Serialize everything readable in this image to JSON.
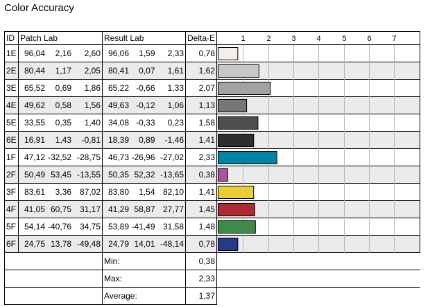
{
  "title": "Color Accuracy",
  "headers": {
    "id": "ID",
    "patch": "Patch Lab",
    "result": "Result Lab",
    "delta": "Delta-E"
  },
  "chart_data": {
    "type": "bar",
    "orientation": "horizontal",
    "axis_ticks": [
      "1",
      "2",
      "3",
      "4",
      "5",
      "6",
      "7"
    ],
    "xlim": [
      0,
      8
    ],
    "grid": true,
    "categories": [
      "1E",
      "2E",
      "3E",
      "4E",
      "5E",
      "6E",
      "1F",
      "2F",
      "3F",
      "4F",
      "5F",
      "6F"
    ],
    "values": [
      0.78,
      1.62,
      2.07,
      1.13,
      1.58,
      1.41,
      2.33,
      0.38,
      1.41,
      1.45,
      1.48,
      0.78
    ],
    "colors": [
      "#f3eee9",
      "#c8c8c6",
      "#a2a2a2",
      "#767676",
      "#4e4e4e",
      "#2e2e2e",
      "#0083a4",
      "#b04ea0",
      "#e8cf35",
      "#b02a33",
      "#3e8a46",
      "#253a8a"
    ]
  },
  "rows": [
    {
      "id": "1E",
      "patch": [
        "96,04",
        "2,16",
        "2,60"
      ],
      "result": [
        "96,06",
        "1,59",
        "2,33"
      ],
      "delta": "0,78"
    },
    {
      "id": "2E",
      "patch": [
        "80,44",
        "1,17",
        "2,05"
      ],
      "result": [
        "80,41",
        "0,07",
        "1,61"
      ],
      "delta": "1,62"
    },
    {
      "id": "3E",
      "patch": [
        "65,52",
        "0,69",
        "1,86"
      ],
      "result": [
        "65,22",
        "-0,66",
        "1,33"
      ],
      "delta": "2,07"
    },
    {
      "id": "4E",
      "patch": [
        "49,62",
        "0,58",
        "1,56"
      ],
      "result": [
        "49,63",
        "-0,12",
        "1,06"
      ],
      "delta": "1,13"
    },
    {
      "id": "5E",
      "patch": [
        "33,55",
        "0,35",
        "1,40"
      ],
      "result": [
        "34,08",
        "-0,33",
        "0,23"
      ],
      "delta": "1,58"
    },
    {
      "id": "6E",
      "patch": [
        "16,91",
        "1,43",
        "-0,81"
      ],
      "result": [
        "18,39",
        "0,89",
        "-1,46"
      ],
      "delta": "1,41"
    },
    {
      "id": "1F",
      "patch": [
        "47,12",
        "-32,52",
        "-28,75"
      ],
      "result": [
        "46,73",
        "-26,96",
        "-27,02"
      ],
      "delta": "2,33"
    },
    {
      "id": "2F",
      "patch": [
        "50,49",
        "53,45",
        "-13,55"
      ],
      "result": [
        "50,35",
        "52,32",
        "-13,65"
      ],
      "delta": "0,38"
    },
    {
      "id": "3F",
      "patch": [
        "83,61",
        "3,36",
        "87,02"
      ],
      "result": [
        "83,80",
        "1,54",
        "82,10"
      ],
      "delta": "1,41"
    },
    {
      "id": "4F",
      "patch": [
        "41,05",
        "60,75",
        "31,17"
      ],
      "result": [
        "41,29",
        "58,87",
        "27,77"
      ],
      "delta": "1,45"
    },
    {
      "id": "5F",
      "patch": [
        "54,14",
        "-40,76",
        "34,75"
      ],
      "result": [
        "53,89",
        "-41,49",
        "31,58"
      ],
      "delta": "1,48"
    },
    {
      "id": "6F",
      "patch": [
        "24,75",
        "13,78",
        "-49,48"
      ],
      "result": [
        "24,79",
        "14,01",
        "-48,14"
      ],
      "delta": "0,78"
    }
  ],
  "summary": [
    {
      "label": "Min:",
      "value": "0,38"
    },
    {
      "label": "Max:",
      "value": "2,33"
    },
    {
      "label": "Average:",
      "value": "1,37"
    }
  ]
}
